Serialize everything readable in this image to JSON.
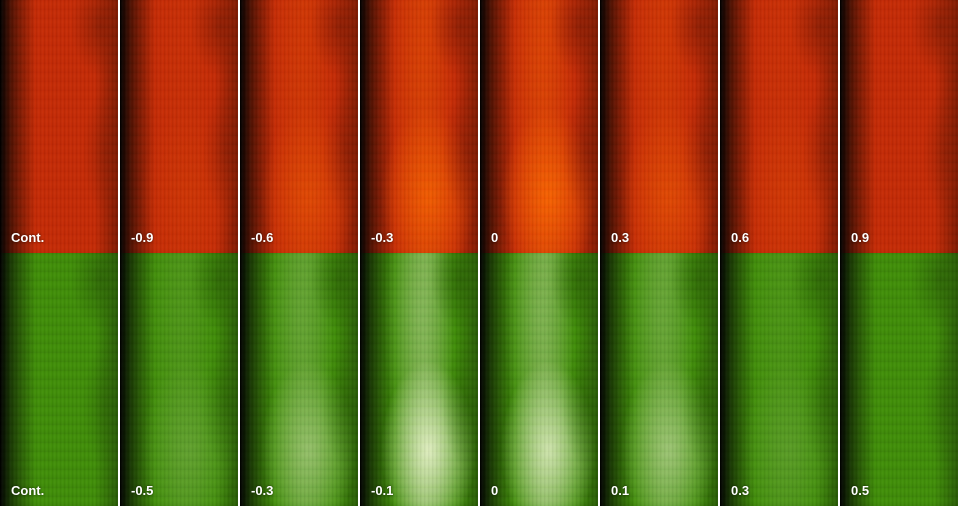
{
  "rows": [
    {
      "name": "red-row",
      "labels": [
        "Cont.",
        "-0.9",
        "-0.6",
        "-0.3",
        "0",
        "0.3",
        "0.6",
        "0.9"
      ],
      "base_color": "#c42a05",
      "dark_color": "#000000",
      "bright_color": "#ff6a00",
      "brightness": [
        0.0,
        0.15,
        0.45,
        0.75,
        0.85,
        0.45,
        0.2,
        0.0
      ]
    },
    {
      "name": "green-row",
      "labels": [
        "Cont.",
        "-0.5",
        "-0.3",
        "-0.1",
        "0",
        "0.1",
        "0.3",
        "0.5"
      ],
      "base_color": "#3f8c08",
      "dark_color": "#000000",
      "bright_color": "#e6f2c8",
      "brightness": [
        0.0,
        0.2,
        0.5,
        0.95,
        0.85,
        0.55,
        0.15,
        0.0
      ]
    }
  ]
}
